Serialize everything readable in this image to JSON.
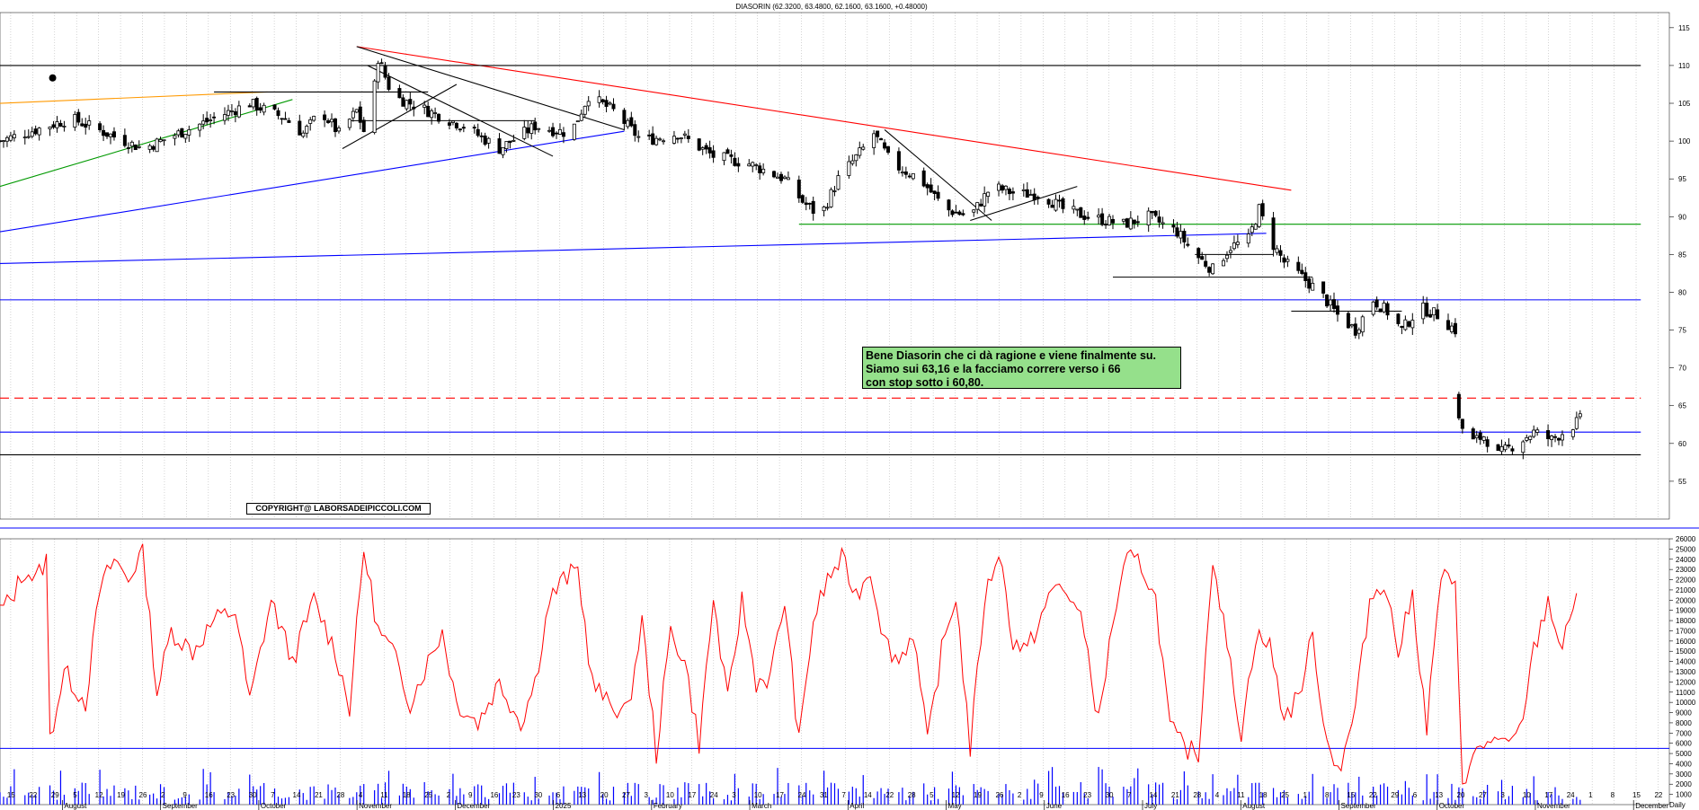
{
  "chart_data": [
    {
      "type": "candlestick",
      "title": "DIASORIN (62.3200, 63.4800, 62.1600, 63.1600, +0.48000)",
      "ylim": [
        50,
        117
      ],
      "y_ticks": [
        "55",
        "60",
        "65",
        "70",
        "75",
        "80",
        "85",
        "90",
        "95",
        "100",
        "105",
        "110",
        "115"
      ],
      "grid": "vertical dotted",
      "x_day_labels": [
        "15",
        "22",
        "29",
        "5",
        "12",
        "19",
        "26",
        "2",
        "9",
        "16",
        "23",
        "30",
        "7",
        "14",
        "21",
        "28",
        "4",
        "11",
        "18",
        "25",
        "2",
        "9",
        "16",
        "23",
        "30",
        "6",
        "13",
        "20",
        "27",
        "3",
        "10",
        "17",
        "24",
        "3",
        "10",
        "17",
        "24",
        "31",
        "7",
        "14",
        "22",
        "28",
        "5",
        "12",
        "19",
        "26",
        "2",
        "9",
        "16",
        "23",
        "30",
        "7",
        "14",
        "21",
        "28",
        "4",
        "11",
        "18",
        "25",
        "1",
        "8",
        "15",
        "22",
        "29",
        "6",
        "13",
        "20",
        "27",
        "3",
        "10",
        "17",
        "24",
        "1",
        "8",
        "15",
        "22"
      ],
      "x_month_labels": [
        "August",
        "September",
        "October",
        "November",
        "December",
        "2025",
        "February",
        "March",
        "April",
        "May",
        "June",
        "July",
        "August",
        "September",
        "October",
        "November",
        "December"
      ],
      "anchors_close": [
        [
          0,
          100
        ],
        [
          20,
          103
        ],
        [
          40,
          99
        ],
        [
          55,
          102
        ],
        [
          70,
          105
        ],
        [
          75,
          104
        ],
        [
          80,
          103
        ],
        [
          85,
          101
        ],
        [
          90,
          104
        ],
        [
          95,
          101
        ],
        [
          100,
          104
        ],
        [
          103,
          100
        ],
        [
          106,
          111
        ],
        [
          110,
          106
        ],
        [
          120,
          104
        ],
        [
          130,
          102
        ],
        [
          140,
          99
        ],
        [
          150,
          102
        ],
        [
          160,
          101
        ],
        [
          165,
          106
        ],
        [
          172,
          104
        ],
        [
          180,
          100
        ],
        [
          190,
          101
        ],
        [
          200,
          98
        ],
        [
          210,
          97
        ],
        [
          220,
          95
        ],
        [
          225,
          92
        ],
        [
          230,
          90
        ],
        [
          235,
          95
        ],
        [
          242,
          99
        ],
        [
          245,
          101
        ],
        [
          250,
          97
        ],
        [
          258,
          95
        ],
        [
          265,
          91
        ],
        [
          272,
          90
        ],
        [
          278,
          94
        ],
        [
          285,
          93
        ],
        [
          292,
          93
        ],
        [
          298,
          91
        ],
        [
          305,
          90
        ],
        [
          315,
          89
        ],
        [
          322,
          90
        ],
        [
          330,
          88
        ],
        [
          335,
          85
        ],
        [
          340,
          83
        ],
        [
          345,
          86
        ],
        [
          350,
          87
        ],
        [
          353,
          91
        ],
        [
          356,
          87
        ],
        [
          360,
          84
        ],
        [
          365,
          82
        ],
        [
          370,
          80
        ],
        [
          375,
          77
        ],
        [
          380,
          75
        ],
        [
          385,
          79
        ],
        [
          390,
          77
        ],
        [
          393,
          75
        ],
        [
          398,
          78
        ],
        [
          403,
          77
        ],
        [
          408,
          75
        ],
        [
          409,
          63
        ],
        [
          412,
          60
        ],
        [
          416,
          61
        ],
        [
          420,
          58.5
        ],
        [
          425,
          60
        ],
        [
          430,
          61.5
        ],
        [
          435,
          60.5
        ],
        [
          440,
          62
        ],
        [
          443,
          63.16
        ]
      ],
      "first_candle_x": 0,
      "last_candle_x": 443,
      "gap_days": [
        409,
        410
      ],
      "trendlines": [
        {
          "color": "#ff0000",
          "dash": false,
          "from": [
            100,
            112.5
          ],
          "to": [
            362,
            93.5
          ]
        },
        {
          "color": "#ff0000",
          "dash": true,
          "from": [
            0,
            66
          ],
          "to": [
            460,
            66
          ]
        },
        {
          "color": "#0000ff",
          "dash": false,
          "from": [
            0,
            88
          ],
          "to": [
            175,
            101.3
          ]
        },
        {
          "color": "#0000ff",
          "dash": false,
          "from": [
            0,
            83.8
          ],
          "to": [
            355,
            87.8
          ]
        },
        {
          "color": "#0000ff",
          "dash": false,
          "from": [
            0,
            79
          ],
          "to": [
            460,
            79
          ]
        },
        {
          "color": "#0000ff",
          "dash": false,
          "from": [
            0,
            61.5
          ],
          "to": [
            460,
            61.5
          ]
        },
        {
          "color": "#000000",
          "dash": false,
          "from": [
            0,
            110
          ],
          "to": [
            460,
            110
          ]
        },
        {
          "color": "#000000",
          "dash": false,
          "from": [
            0,
            58.5
          ],
          "to": [
            460,
            58.5
          ]
        },
        {
          "color": "#009900",
          "dash": false,
          "from": [
            0,
            94
          ],
          "to": [
            82,
            105.5
          ]
        },
        {
          "color": "#ff9900",
          "dash": false,
          "from": [
            0,
            105
          ],
          "to": [
            75,
            106.5
          ]
        },
        {
          "color": "#009900",
          "dash": false,
          "from": [
            224,
            89
          ],
          "to": [
            460,
            89
          ]
        },
        {
          "color": "#000000",
          "dash": false,
          "from": [
            100,
            112.5
          ],
          "to": [
            175,
            101.5
          ]
        },
        {
          "color": "#000000",
          "dash": false,
          "from": [
            103,
            110
          ],
          "to": [
            155,
            98
          ]
        },
        {
          "color": "#000000",
          "dash": false,
          "from": [
            96,
            99
          ],
          "to": [
            128,
            107.5
          ]
        },
        {
          "color": "#000000",
          "dash": false,
          "from": [
            60,
            106.5
          ],
          "to": [
            120,
            106.5
          ]
        },
        {
          "color": "#000000",
          "dash": false,
          "from": [
            98,
            102.7
          ],
          "to": [
            150,
            102.7
          ]
        },
        {
          "color": "#000000",
          "dash": false,
          "from": [
            248,
            101.5
          ],
          "to": [
            278,
            89.5
          ]
        },
        {
          "color": "#000000",
          "dash": false,
          "from": [
            272,
            89.5
          ],
          "to": [
            302,
            94
          ]
        },
        {
          "color": "#000000",
          "dash": false,
          "from": [
            312,
            82
          ],
          "to": [
            368,
            82
          ]
        },
        {
          "color": "#000000",
          "dash": false,
          "from": [
            335,
            85
          ],
          "to": [
            357,
            85
          ]
        },
        {
          "color": "#000000",
          "dash": false,
          "from": [
            362,
            77.5
          ],
          "to": [
            393,
            77.5
          ]
        }
      ],
      "annotation_lines": [
        "Bene Diasorin che ci dà ragione e viene finalmente su.",
        "Siamo sui 63,16 e la facciamo correre verso i 66",
        "con stop sotto i 60,80."
      ],
      "copyright": "COPYRIGHT@ LABORSADEIPICCOLI.COM",
      "marker_label": "3",
      "marker_at": [
        14,
        108
      ]
    },
    {
      "type": "line+bar",
      "ylim": [
        0,
        26000
      ],
      "y_ticks": [
        "1000",
        "2000",
        "3000",
        "4000",
        "5000",
        "6000",
        "7000",
        "8000",
        "9000",
        "10000",
        "11000",
        "12000",
        "13000",
        "14000",
        "15000",
        "16000",
        "17000",
        "18000",
        "19000",
        "20000",
        "21000",
        "22000",
        "23000",
        "24000",
        "25000",
        "26000"
      ],
      "series": [
        {
          "kind": "line",
          "color": "#ff0000",
          "anchors": [
            [
              0,
              19000
            ],
            [
              3,
              20000
            ],
            [
              7,
              23000
            ],
            [
              10,
              22000
            ],
            [
              13,
              24000
            ],
            [
              14,
              6500
            ],
            [
              18,
              13000
            ],
            [
              24,
              10000
            ],
            [
              28,
              21000
            ],
            [
              32,
              24000
            ],
            [
              36,
              22000
            ],
            [
              40,
              25000
            ],
            [
              44,
              11000
            ],
            [
              48,
              17000
            ],
            [
              54,
              15000
            ],
            [
              60,
              18000
            ],
            [
              66,
              19000
            ],
            [
              70,
              10000
            ],
            [
              76,
              20000
            ],
            [
              82,
              14000
            ],
            [
              88,
              20000
            ],
            [
              94,
              15000
            ],
            [
              98,
              9500
            ],
            [
              102,
              25000
            ],
            [
              106,
              17000
            ],
            [
              110,
              15000
            ],
            [
              115,
              10000
            ],
            [
              120,
              14000
            ],
            [
              124,
              17000
            ],
            [
              128,
              10000
            ],
            [
              134,
              8000
            ],
            [
              140,
              12000
            ],
            [
              146,
              8000
            ],
            [
              150,
              12000
            ],
            [
              154,
              20000
            ],
            [
              158,
              22000
            ],
            [
              162,
              23000
            ],
            [
              166,
              12000
            ],
            [
              170,
              10000
            ],
            [
              176,
              9000
            ],
            [
              180,
              18000
            ],
            [
              184,
              5000
            ],
            [
              188,
              17000
            ],
            [
              192,
              14000
            ],
            [
              196,
              6000
            ],
            [
              200,
              20000
            ],
            [
              204,
              10000
            ],
            [
              208,
              20000
            ],
            [
              212,
              12000
            ],
            [
              216,
              12500
            ],
            [
              220,
              20000
            ],
            [
              224,
              6000
            ],
            [
              228,
              18000
            ],
            [
              232,
              22000
            ],
            [
              236,
              24000
            ],
            [
              240,
              20500
            ],
            [
              244,
              23000
            ],
            [
              248,
              16000
            ],
            [
              252,
              14000
            ],
            [
              256,
              17000
            ],
            [
              260,
              6000
            ],
            [
              264,
              15000
            ],
            [
              268,
              20500
            ],
            [
              272,
              5500
            ],
            [
              276,
              20000
            ],
            [
              280,
              25000
            ],
            [
              284,
              16000
            ],
            [
              288,
              15000
            ],
            [
              292,
              18500
            ],
            [
              296,
              21500
            ],
            [
              300,
              20500
            ],
            [
              304,
              17000
            ],
            [
              308,
              8000
            ],
            [
              312,
              18000
            ],
            [
              316,
              24000
            ],
            [
              320,
              23500
            ],
            [
              324,
              20000
            ],
            [
              328,
              7500
            ],
            [
              332,
              5500
            ],
            [
              336,
              5000
            ],
            [
              340,
              24500
            ],
            [
              344,
              15500
            ],
            [
              348,
              7000
            ],
            [
              352,
              16500
            ],
            [
              356,
              15500
            ],
            [
              360,
              8500
            ],
            [
              364,
              10500
            ],
            [
              368,
              16500
            ],
            [
              372,
              6000
            ],
            [
              376,
              3500
            ],
            [
              380,
              9500
            ],
            [
              384,
              20000
            ],
            [
              388,
              22000
            ],
            [
              392,
              15000
            ],
            [
              396,
              20500
            ],
            [
              400,
              7500
            ],
            [
              404,
              22500
            ],
            [
              408,
              21000
            ],
            [
              410,
              2500
            ],
            [
              414,
              5000
            ],
            [
              418,
              6500
            ],
            [
              422,
              5500
            ],
            [
              426,
              7000
            ],
            [
              430,
              15000
            ],
            [
              434,
              20000
            ],
            [
              438,
              15000
            ],
            [
              442,
              21000
            ]
          ]
        },
        {
          "kind": "bar",
          "color": "#0000ff",
          "peaks": [
            [
              286,
              24500
            ],
            [
              370,
              22500
            ]
          ]
        }
      ],
      "hlines": [
        {
          "color": "#0000ff",
          "y": 5500
        }
      ]
    }
  ],
  "axis_extra_label": "Daily"
}
